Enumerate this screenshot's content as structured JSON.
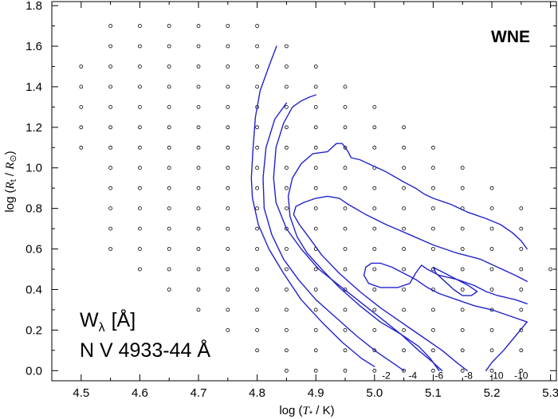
{
  "chart_data": {
    "type": "line",
    "title": "",
    "badge": "WNE",
    "quantity_label": "W",
    "quantity_sub": "λ",
    "quantity_unit": "[Å]",
    "line_name": "N V 4933-44 Å",
    "xlabel": {
      "pre": "log (",
      "sym": "T",
      "sub": "*",
      "post": " / K)"
    },
    "ylabel": {
      "pre": "log (",
      "sym": "R",
      "sub": "t",
      "mid": " / ",
      "sym2": "R",
      "sub2": "⊙",
      "post": ")"
    },
    "xlim": [
      4.45,
      5.31
    ],
    "ylim": [
      -0.05,
      1.82
    ],
    "xticks": [
      4.5,
      4.6,
      4.7,
      4.8,
      4.9,
      5.0,
      5.1,
      5.2,
      5.3
    ],
    "xtick_labels": [
      "4.5",
      "4.6",
      "4.7",
      "4.8",
      "4.9",
      "5.0",
      "5.1",
      "5.2",
      "5.3"
    ],
    "yticks": [
      0.0,
      0.2,
      0.4,
      0.6,
      0.8,
      1.0,
      1.2,
      1.4,
      1.6,
      1.8
    ],
    "ytick_labels": [
      "0.0",
      "0.2",
      "0.4",
      "0.6",
      "0.8",
      "1.0",
      "1.2",
      "1.4",
      "1.6",
      "1.8"
    ],
    "grid": false,
    "colors": {
      "contour": "#2222cc",
      "axis": "#000000",
      "points": "#000000"
    },
    "model_grid": [
      {
        "x": 4.5,
        "y": [
          1.1,
          1.2,
          1.3,
          1.4,
          1.5
        ]
      },
      {
        "x": 4.55,
        "y": [
          0.6,
          0.7,
          0.8,
          0.9,
          1.0,
          1.1,
          1.2,
          1.3,
          1.4,
          1.5,
          1.6,
          1.7
        ]
      },
      {
        "x": 4.6,
        "y": [
          0.5,
          0.6,
          0.7,
          0.8,
          0.9,
          1.0,
          1.1,
          1.2,
          1.3,
          1.4,
          1.5,
          1.6,
          1.7
        ]
      },
      {
        "x": 4.65,
        "y": [
          0.4,
          0.5,
          0.6,
          0.7,
          0.8,
          0.9,
          1.0,
          1.1,
          1.2,
          1.3,
          1.4,
          1.5,
          1.6,
          1.7
        ]
      },
      {
        "x": 4.7,
        "y": [
          0.3,
          0.4,
          0.5,
          0.6,
          0.7,
          0.8,
          0.9,
          1.0,
          1.1,
          1.2,
          1.3,
          1.4,
          1.5,
          1.6,
          1.7
        ]
      },
      {
        "x": 4.75,
        "y": [
          0.2,
          0.3,
          0.4,
          0.5,
          0.6,
          0.7,
          0.8,
          0.9,
          1.0,
          1.1,
          1.2,
          1.3,
          1.4,
          1.5,
          1.6,
          1.7
        ]
      },
      {
        "x": 4.8,
        "y": [
          0.1,
          0.2,
          0.3,
          0.4,
          0.5,
          0.6,
          0.7,
          0.8,
          0.9,
          1.0,
          1.1,
          1.2,
          1.3,
          1.4,
          1.5,
          1.6,
          1.7
        ]
      },
      {
        "x": 4.85,
        "y": [
          0.0,
          0.1,
          0.2,
          0.3,
          0.4,
          0.5,
          0.6,
          0.7,
          0.8,
          0.9,
          1.0,
          1.1,
          1.2,
          1.3,
          1.4,
          1.5,
          1.6
        ]
      },
      {
        "x": 4.9,
        "y": [
          0.0,
          0.1,
          0.2,
          0.3,
          0.4,
          0.5,
          0.6,
          0.7,
          0.8,
          0.9,
          1.0,
          1.1,
          1.2,
          1.3,
          1.4,
          1.5
        ]
      },
      {
        "x": 4.95,
        "y": [
          0.0,
          0.1,
          0.2,
          0.3,
          0.4,
          0.5,
          0.6,
          0.7,
          0.8,
          0.9,
          1.0,
          1.1,
          1.2,
          1.3,
          1.4
        ]
      },
      {
        "x": 5.0,
        "y": [
          0.0,
          0.1,
          0.2,
          0.3,
          0.4,
          0.5,
          0.6,
          0.7,
          0.8,
          0.9,
          1.0,
          1.1,
          1.2,
          1.3
        ]
      },
      {
        "x": 5.05,
        "y": [
          0.0,
          0.1,
          0.2,
          0.3,
          0.4,
          0.5,
          0.6,
          0.7,
          0.8,
          0.9,
          1.0,
          1.1,
          1.2
        ]
      },
      {
        "x": 5.1,
        "y": [
          0.0,
          0.1,
          0.2,
          0.3,
          0.4,
          0.5,
          0.6,
          0.7,
          0.8,
          0.9,
          1.0,
          1.1
        ]
      },
      {
        "x": 5.15,
        "y": [
          0.0,
          0.1,
          0.2,
          0.3,
          0.4,
          0.5,
          0.6,
          0.7,
          0.8,
          0.9,
          1.0
        ]
      },
      {
        "x": 5.2,
        "y": [
          0.0,
          0.1,
          0.2,
          0.3,
          0.4,
          0.5,
          0.6,
          0.7,
          0.8,
          0.9
        ]
      },
      {
        "x": 5.25,
        "y": [
          0.0,
          0.1,
          0.2,
          0.3,
          0.4,
          0.5,
          0.6,
          0.7,
          0.8
        ]
      },
      {
        "x": 5.3,
        "y": [
          0.5
        ]
      }
    ],
    "contours": [
      {
        "label": "-2",
        "label_pos": [
          5.02,
          -0.04
        ],
        "points": [
          [
            4.833,
            1.6
          ],
          [
            4.82,
            1.5
          ],
          [
            4.805,
            1.38
          ],
          [
            4.797,
            1.25
          ],
          [
            4.793,
            1.1
          ],
          [
            4.79,
            0.95
          ],
          [
            4.792,
            0.85
          ],
          [
            4.802,
            0.72
          ],
          [
            4.82,
            0.6
          ],
          [
            4.845,
            0.48
          ],
          [
            4.875,
            0.35
          ],
          [
            4.91,
            0.24
          ],
          [
            4.945,
            0.14
          ],
          [
            4.978,
            0.06
          ],
          [
            5.0,
            0.02
          ]
        ]
      },
      {
        "label": "-4",
        "label_pos": [
          5.065,
          -0.04
        ],
        "points": [
          [
            4.85,
            1.32
          ],
          [
            4.83,
            1.24
          ],
          [
            4.815,
            1.1
          ],
          [
            4.81,
            0.95
          ],
          [
            4.812,
            0.8
          ],
          [
            4.825,
            0.67
          ],
          [
            4.845,
            0.55
          ],
          [
            4.87,
            0.45
          ],
          [
            4.9,
            0.35
          ],
          [
            4.935,
            0.26
          ],
          [
            4.97,
            0.17
          ],
          [
            5.005,
            0.09
          ],
          [
            5.035,
            0.03
          ],
          [
            5.05,
            0.0
          ]
        ]
      },
      {
        "label": "-6",
        "label_pos": [
          5.11,
          -0.04
        ],
        "points": [
          [
            4.9,
            1.36
          ],
          [
            4.89,
            1.35
          ],
          [
            4.875,
            1.33
          ],
          [
            4.86,
            1.3
          ],
          [
            4.845,
            1.22
          ],
          [
            4.832,
            1.1
          ],
          [
            4.828,
            0.95
          ],
          [
            4.832,
            0.83
          ],
          [
            4.85,
            0.7
          ],
          [
            4.875,
            0.6
          ],
          [
            4.905,
            0.5
          ],
          [
            4.94,
            0.42
          ],
          [
            4.975,
            0.34
          ],
          [
            5.01,
            0.26
          ],
          [
            5.045,
            0.18
          ],
          [
            5.075,
            0.1
          ],
          [
            5.1,
            0.04
          ],
          [
            5.115,
            0.0
          ]
        ]
      },
      {
        "label": "-8",
        "label_pos": [
          5.16,
          -0.04
        ],
        "points": [
          [
            5.11,
            0.0
          ],
          [
            5.095,
            0.06
          ],
          [
            5.075,
            0.12
          ],
          [
            5.045,
            0.18
          ],
          [
            5.01,
            0.24
          ],
          [
            4.975,
            0.32
          ],
          [
            4.94,
            0.41
          ],
          [
            4.91,
            0.5
          ],
          [
            4.885,
            0.58
          ],
          [
            4.868,
            0.66
          ],
          [
            4.856,
            0.76
          ],
          [
            4.853,
            0.86
          ],
          [
            4.86,
            0.95
          ],
          [
            4.875,
            1.02
          ],
          [
            4.895,
            1.07
          ],
          [
            4.92,
            1.08
          ],
          [
            4.935,
            1.12
          ],
          [
            4.945,
            1.12
          ],
          [
            4.955,
            1.08
          ],
          [
            4.96,
            1.05
          ],
          [
            4.975,
            1.04
          ],
          [
            4.99,
            1.02
          ],
          [
            5.02,
            0.98
          ],
          [
            5.05,
            0.93
          ],
          [
            5.07,
            0.9
          ],
          [
            5.085,
            0.87
          ],
          [
            5.1,
            0.85
          ],
          [
            5.13,
            0.82
          ],
          [
            5.16,
            0.78
          ],
          [
            5.19,
            0.75
          ],
          [
            5.215,
            0.72
          ],
          [
            5.235,
            0.68
          ],
          [
            5.25,
            0.64
          ],
          [
            5.26,
            0.6
          ]
        ]
      },
      {
        "label": "-10",
        "label_pos": [
          5.208,
          -0.04
        ],
        "points": [
          [
            5.26,
            0.44
          ],
          [
            5.24,
            0.47
          ],
          [
            5.21,
            0.51
          ],
          [
            5.18,
            0.55
          ],
          [
            5.14,
            0.58
          ],
          [
            5.1,
            0.62
          ],
          [
            5.06,
            0.67
          ],
          [
            5.02,
            0.72
          ],
          [
            4.985,
            0.77
          ],
          [
            4.955,
            0.82
          ],
          [
            4.94,
            0.85
          ],
          [
            4.92,
            0.86
          ],
          [
            4.9,
            0.85
          ],
          [
            4.88,
            0.83
          ],
          [
            4.866,
            0.81
          ],
          [
            4.862,
            0.77
          ],
          [
            4.872,
            0.72
          ],
          [
            4.89,
            0.65
          ],
          [
            4.91,
            0.57
          ],
          [
            4.94,
            0.48
          ],
          [
            4.975,
            0.39
          ],
          [
            5.01,
            0.31
          ],
          [
            5.045,
            0.24
          ],
          [
            5.08,
            0.17
          ],
          [
            5.115,
            0.1
          ],
          [
            5.14,
            0.04
          ],
          [
            5.158,
            0.0
          ]
        ]
      },
      {
        "label": "-10",
        "label_pos": [
          5.25,
          -0.04
        ],
        "points": [
          [
            5.19,
            0.0
          ],
          [
            5.2,
            0.04
          ],
          [
            5.22,
            0.1
          ],
          [
            5.24,
            0.17
          ],
          [
            5.26,
            0.24
          ]
        ]
      },
      {
        "label": "",
        "label_pos": null,
        "points": [
          [
            5.26,
            0.33
          ],
          [
            5.24,
            0.35
          ],
          [
            5.21,
            0.37
          ],
          [
            5.19,
            0.39
          ],
          [
            5.17,
            0.42
          ],
          [
            5.14,
            0.45
          ],
          [
            5.11,
            0.47
          ],
          [
            5.09,
            0.5
          ],
          [
            5.08,
            0.52
          ],
          [
            5.075,
            0.5
          ],
          [
            5.07,
            0.48
          ],
          [
            5.06,
            0.43
          ],
          [
            5.04,
            0.41
          ],
          [
            5.01,
            0.41
          ],
          [
            4.99,
            0.43
          ],
          [
            4.982,
            0.47
          ],
          [
            4.985,
            0.51
          ],
          [
            4.995,
            0.53
          ],
          [
            5.01,
            0.53
          ],
          [
            5.03,
            0.51
          ],
          [
            5.05,
            0.48
          ],
          [
            5.07,
            0.45
          ],
          [
            5.09,
            0.41
          ],
          [
            5.11,
            0.38
          ],
          [
            5.14,
            0.35
          ],
          [
            5.17,
            0.32
          ],
          [
            5.2,
            0.3
          ],
          [
            5.23,
            0.27
          ],
          [
            5.26,
            0.24
          ]
        ]
      },
      {
        "label": "",
        "label_pos": null,
        "points": [
          [
            5.1,
            0.51
          ],
          [
            5.12,
            0.48
          ],
          [
            5.14,
            0.45
          ],
          [
            5.16,
            0.42
          ],
          [
            5.175,
            0.39
          ],
          [
            5.165,
            0.37
          ],
          [
            5.15,
            0.37
          ],
          [
            5.135,
            0.4
          ],
          [
            5.12,
            0.44
          ],
          [
            5.105,
            0.48
          ],
          [
            5.1,
            0.51
          ]
        ]
      }
    ]
  }
}
